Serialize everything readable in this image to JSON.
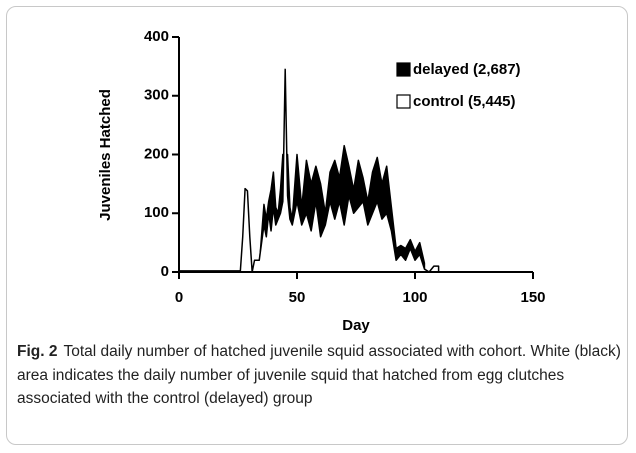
{
  "chart_data": {
    "type": "area",
    "x_label": "Day",
    "y_label": "Juveniles Hatched",
    "x": [
      0,
      26,
      27,
      28,
      29,
      30,
      31,
      32,
      34,
      36,
      37,
      38,
      39,
      40,
      41,
      42,
      43,
      44,
      45,
      46,
      47,
      48,
      50,
      52,
      54,
      56,
      58,
      60,
      62,
      64,
      66,
      68,
      70,
      72,
      74,
      76,
      78,
      80,
      82,
      84,
      86,
      88,
      90,
      92,
      94,
      96,
      98,
      100,
      102,
      104,
      106,
      108,
      110
    ],
    "series": [
      {
        "name": "delayed (2,687)",
        "color": "#000000",
        "values": [
          null,
          null,
          null,
          null,
          null,
          null,
          null,
          null,
          10,
          115,
          90,
          120,
          140,
          170,
          110,
          100,
          140,
          200,
          150,
          200,
          110,
          90,
          200,
          110,
          190,
          150,
          180,
          150,
          100,
          170,
          190,
          160,
          215,
          180,
          140,
          190,
          160,
          120,
          170,
          195,
          150,
          180,
          110,
          40,
          45,
          40,
          55,
          35,
          50,
          15,
          null,
          null,
          null
        ]
      },
      {
        "name": "control (5,445)",
        "color": "#ffffff",
        "values": [
          2,
          2,
          60,
          142,
          138,
          60,
          0,
          20,
          20,
          80,
          60,
          100,
          70,
          110,
          80,
          90,
          100,
          120,
          345,
          130,
          90,
          80,
          120,
          80,
          100,
          70,
          120,
          60,
          80,
          120,
          90,
          120,
          80,
          130,
          100,
          110,
          120,
          80,
          100,
          120,
          90,
          100,
          70,
          20,
          30,
          20,
          40,
          20,
          30,
          5,
          0,
          10,
          10
        ]
      }
    ],
    "xlim": [
      0,
      150
    ],
    "xticks": [
      0,
      50,
      100,
      150
    ],
    "ylim": [
      0,
      400
    ],
    "yticks": [
      0,
      100,
      200,
      300,
      400
    ],
    "legend": "upper right"
  },
  "caption": {
    "label": "Fig. 2",
    "text": "Total daily number of hatched juvenile squid associated with cohort. White (black) area indicates the daily number of juvenile squid that hatched from egg clutches associated with the control (delayed) group"
  }
}
